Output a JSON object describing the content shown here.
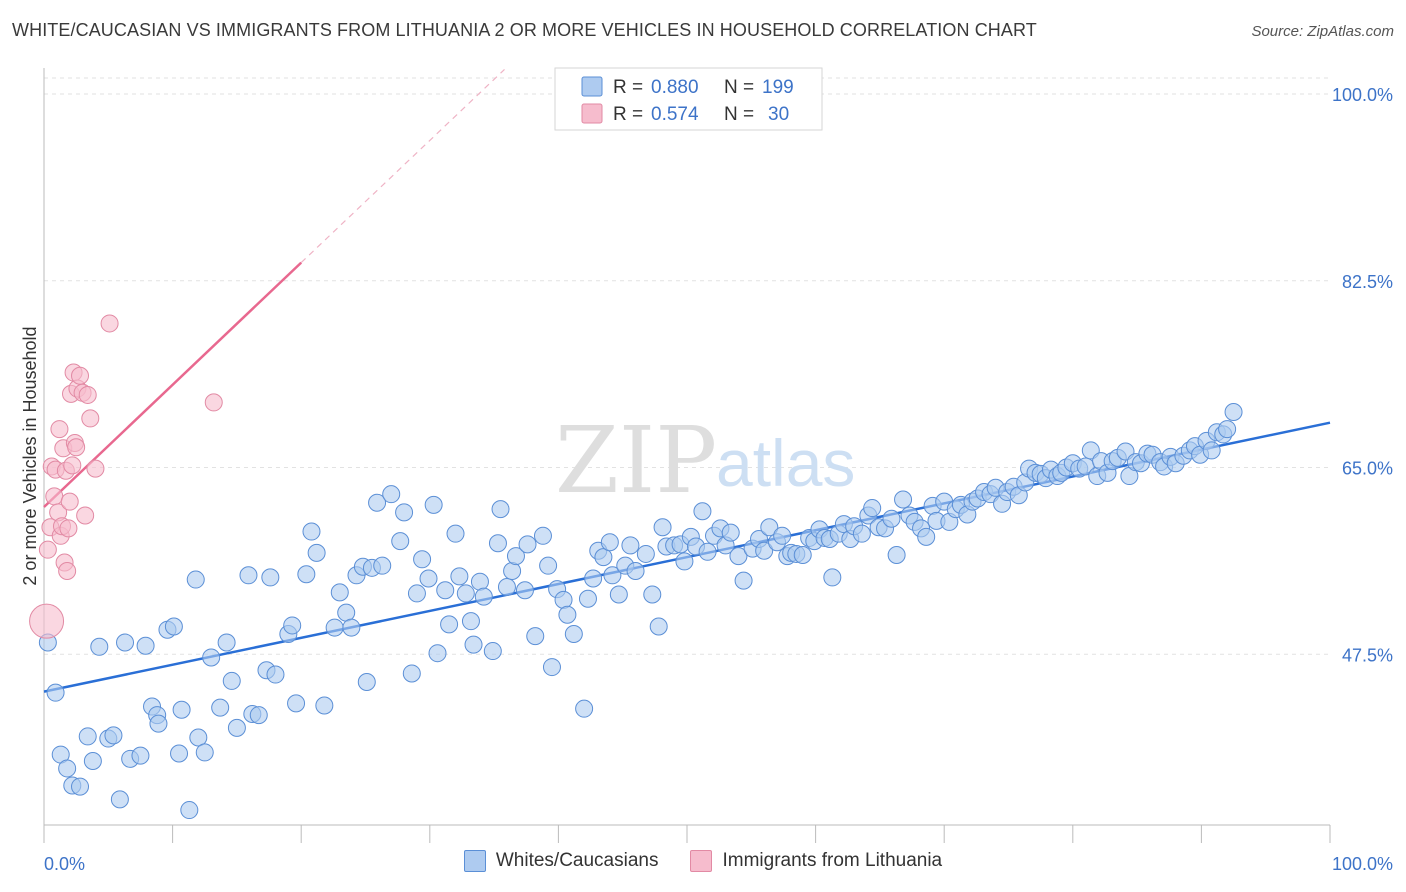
{
  "title": "WHITE/CAUCASIAN VS IMMIGRANTS FROM LITHUANIA 2 OR MORE VEHICLES IN HOUSEHOLD CORRELATION CHART",
  "source": "Source: ZipAtlas.com",
  "watermark": {
    "zip": "ZIP",
    "atlas": "atlas"
  },
  "colors": {
    "blue_fill": "#aecbf0",
    "blue_stroke": "#5b8fd6",
    "blue_line": "#2a6fd6",
    "pink_fill": "#f6bccd",
    "pink_stroke": "#e28aa4",
    "pink_line": "#e8688f",
    "axis_label": "#3d73c8"
  },
  "legend_box": {
    "rows": [
      {
        "r_label": "R =",
        "r_value": "0.880",
        "n_label": "N =",
        "n_value": "199"
      },
      {
        "r_label": "R =",
        "r_value": "0.574",
        "n_label": "N =",
        "n_value": "30"
      }
    ]
  },
  "bottom_legend": [
    "Whites/Caucasians",
    "Immigrants from Lithuania"
  ],
  "chart_data": {
    "type": "scatter",
    "title": "WHITE/CAUCASIAN VS IMMIGRANTS FROM LITHUANIA 2 OR MORE VEHICLES IN HOUSEHOLD CORRELATION CHART",
    "xlabel": "",
    "ylabel": "2 or more Vehicles in Household",
    "xlim": [
      0,
      100
    ],
    "ylim": [
      31.5,
      101.5
    ],
    "x_tick_labels": [
      "0.0%",
      "100.0%"
    ],
    "y_tick_values": [
      47.5,
      65.0,
      82.5,
      100.0
    ],
    "y_tick_labels": [
      "47.5%",
      "65.0%",
      "82.5%",
      "100.0%"
    ],
    "grid": true,
    "legend_position": "top-center",
    "series": [
      {
        "name": "Whites/Caucasians",
        "R": 0.88,
        "N": 199,
        "trend": {
          "x": [
            0,
            100
          ],
          "y": [
            44.0,
            69.2
          ]
        },
        "points": [
          [
            0.3,
            48.6
          ],
          [
            0.9,
            43.9
          ],
          [
            1.3,
            38.1
          ],
          [
            1.8,
            36.8
          ],
          [
            2.2,
            35.2
          ],
          [
            2.8,
            35.1
          ],
          [
            3.4,
            39.8
          ],
          [
            3.8,
            37.5
          ],
          [
            4.3,
            48.2
          ],
          [
            5.0,
            39.6
          ],
          [
            5.4,
            39.9
          ],
          [
            5.9,
            33.9
          ],
          [
            6.3,
            48.6
          ],
          [
            6.7,
            37.7
          ],
          [
            7.5,
            38.0
          ],
          [
            7.9,
            48.3
          ],
          [
            8.4,
            42.6
          ],
          [
            8.8,
            41.8
          ],
          [
            8.9,
            41.0
          ],
          [
            9.6,
            49.8
          ],
          [
            10.1,
            50.1
          ],
          [
            10.5,
            38.2
          ],
          [
            10.7,
            42.3
          ],
          [
            11.3,
            32.9
          ],
          [
            11.8,
            54.5
          ],
          [
            12.0,
            39.7
          ],
          [
            12.5,
            38.3
          ],
          [
            13.0,
            47.2
          ],
          [
            13.7,
            42.5
          ],
          [
            14.2,
            48.6
          ],
          [
            14.6,
            45.0
          ],
          [
            15.0,
            40.6
          ],
          [
            15.9,
            54.9
          ],
          [
            16.2,
            41.9
          ],
          [
            16.7,
            41.8
          ],
          [
            17.3,
            46.0
          ],
          [
            18.0,
            45.6
          ],
          [
            17.6,
            54.7
          ],
          [
            19.0,
            49.4
          ],
          [
            19.3,
            50.2
          ],
          [
            19.6,
            42.9
          ],
          [
            20.4,
            55.0
          ],
          [
            20.8,
            59.0
          ],
          [
            21.2,
            57.0
          ],
          [
            21.8,
            42.7
          ],
          [
            22.6,
            50.0
          ],
          [
            23.0,
            53.3
          ],
          [
            23.5,
            51.4
          ],
          [
            23.9,
            50.0
          ],
          [
            24.3,
            54.9
          ],
          [
            24.8,
            55.7
          ],
          [
            25.1,
            44.9
          ],
          [
            25.5,
            55.6
          ],
          [
            25.9,
            61.7
          ],
          [
            26.3,
            55.8
          ],
          [
            27.0,
            62.5
          ],
          [
            27.7,
            58.1
          ],
          [
            28.0,
            60.8
          ],
          [
            28.6,
            45.7
          ],
          [
            29.0,
            53.2
          ],
          [
            29.4,
            56.4
          ],
          [
            29.9,
            54.6
          ],
          [
            30.3,
            61.5
          ],
          [
            30.6,
            47.6
          ],
          [
            31.2,
            53.5
          ],
          [
            31.5,
            50.3
          ],
          [
            32.0,
            58.8
          ],
          [
            32.3,
            54.8
          ],
          [
            32.8,
            53.2
          ],
          [
            33.2,
            50.6
          ],
          [
            33.4,
            48.4
          ],
          [
            33.9,
            54.3
          ],
          [
            34.2,
            52.9
          ],
          [
            34.9,
            47.8
          ],
          [
            35.3,
            57.9
          ],
          [
            35.5,
            61.1
          ],
          [
            36.0,
            53.8
          ],
          [
            36.4,
            55.3
          ],
          [
            36.7,
            56.7
          ],
          [
            37.4,
            53.5
          ],
          [
            37.6,
            57.8
          ],
          [
            38.2,
            49.2
          ],
          [
            38.8,
            58.6
          ],
          [
            39.2,
            55.8
          ],
          [
            39.5,
            46.3
          ],
          [
            39.9,
            53.6
          ],
          [
            40.4,
            52.6
          ],
          [
            40.7,
            51.2
          ],
          [
            41.2,
            49.4
          ],
          [
            42.0,
            42.4
          ],
          [
            42.3,
            52.7
          ],
          [
            42.7,
            54.6
          ],
          [
            43.1,
            57.2
          ],
          [
            43.5,
            56.6
          ],
          [
            44.0,
            58.0
          ],
          [
            44.2,
            54.9
          ],
          [
            44.7,
            53.1
          ],
          [
            45.2,
            55.8
          ],
          [
            45.6,
            57.7
          ],
          [
            46.0,
            55.3
          ],
          [
            46.8,
            56.9
          ],
          [
            47.3,
            53.1
          ],
          [
            47.8,
            50.1
          ],
          [
            48.1,
            59.4
          ],
          [
            48.4,
            57.6
          ],
          [
            49.0,
            57.7
          ],
          [
            49.5,
            57.8
          ],
          [
            49.8,
            56.2
          ],
          [
            50.3,
            58.5
          ],
          [
            50.7,
            57.6
          ],
          [
            51.2,
            60.9
          ],
          [
            51.6,
            57.1
          ],
          [
            52.1,
            58.6
          ],
          [
            52.6,
            59.3
          ],
          [
            53.0,
            57.7
          ],
          [
            53.4,
            58.9
          ],
          [
            54.0,
            56.7
          ],
          [
            54.4,
            54.4
          ],
          [
            55.1,
            57.4
          ],
          [
            55.6,
            58.3
          ],
          [
            56.0,
            57.2
          ],
          [
            56.4,
            59.4
          ],
          [
            57.0,
            58.0
          ],
          [
            57.4,
            58.6
          ],
          [
            57.8,
            56.7
          ],
          [
            58.1,
            57.0
          ],
          [
            58.5,
            56.9
          ],
          [
            59.0,
            56.8
          ],
          [
            59.5,
            58.4
          ],
          [
            59.9,
            58.1
          ],
          [
            60.3,
            59.2
          ],
          [
            60.7,
            58.4
          ],
          [
            61.1,
            58.3
          ],
          [
            61.3,
            54.7
          ],
          [
            61.8,
            58.8
          ],
          [
            62.2,
            59.7
          ],
          [
            62.7,
            58.3
          ],
          [
            63.0,
            59.5
          ],
          [
            63.6,
            58.8
          ],
          [
            64.1,
            60.5
          ],
          [
            64.4,
            61.2
          ],
          [
            64.9,
            59.4
          ],
          [
            65.4,
            59.3
          ],
          [
            65.9,
            60.2
          ],
          [
            66.3,
            56.8
          ],
          [
            66.8,
            62.0
          ],
          [
            67.3,
            60.5
          ],
          [
            67.7,
            59.9
          ],
          [
            68.2,
            59.3
          ],
          [
            68.6,
            58.5
          ],
          [
            69.1,
            61.4
          ],
          [
            69.4,
            60.0
          ],
          [
            70.0,
            61.8
          ],
          [
            70.4,
            59.9
          ],
          [
            70.9,
            61.1
          ],
          [
            71.3,
            61.5
          ],
          [
            71.8,
            60.6
          ],
          [
            72.2,
            61.8
          ],
          [
            72.6,
            62.1
          ],
          [
            73.1,
            62.7
          ],
          [
            73.6,
            62.5
          ],
          [
            74.0,
            63.1
          ],
          [
            74.5,
            61.6
          ],
          [
            74.9,
            62.7
          ],
          [
            75.4,
            63.2
          ],
          [
            75.8,
            62.4
          ],
          [
            76.3,
            63.6
          ],
          [
            76.6,
            64.9
          ],
          [
            77.1,
            64.5
          ],
          [
            77.5,
            64.4
          ],
          [
            77.9,
            64.0
          ],
          [
            78.3,
            64.8
          ],
          [
            78.8,
            64.2
          ],
          [
            79.1,
            64.5
          ],
          [
            79.5,
            65.0
          ],
          [
            80.0,
            65.4
          ],
          [
            80.5,
            64.9
          ],
          [
            81.0,
            65.1
          ],
          [
            81.4,
            66.6
          ],
          [
            81.9,
            64.2
          ],
          [
            82.2,
            65.6
          ],
          [
            82.7,
            64.5
          ],
          [
            83.1,
            65.6
          ],
          [
            83.5,
            65.9
          ],
          [
            84.1,
            66.5
          ],
          [
            84.4,
            64.2
          ],
          [
            84.9,
            65.5
          ],
          [
            85.3,
            65.4
          ],
          [
            85.8,
            66.3
          ],
          [
            86.2,
            66.2
          ],
          [
            86.8,
            65.5
          ],
          [
            87.1,
            65.1
          ],
          [
            87.6,
            66.0
          ],
          [
            88.0,
            65.4
          ],
          [
            88.6,
            66.1
          ],
          [
            89.1,
            66.6
          ],
          [
            89.5,
            67.0
          ],
          [
            89.9,
            66.2
          ],
          [
            90.4,
            67.5
          ],
          [
            90.8,
            66.6
          ],
          [
            91.2,
            68.3
          ],
          [
            91.7,
            68.1
          ],
          [
            92.0,
            68.6
          ],
          [
            92.5,
            70.2
          ]
        ]
      },
      {
        "name": "Immigrants from Lithuania",
        "R": 0.574,
        "N": 30,
        "trend": {
          "x": [
            0,
            20
          ],
          "y": [
            61.3,
            84.2
          ]
        },
        "points": [
          [
            0.2,
            50.6
          ],
          [
            0.3,
            57.3
          ],
          [
            0.5,
            59.4
          ],
          [
            0.6,
            65.1
          ],
          [
            0.8,
            62.3
          ],
          [
            0.9,
            64.8
          ],
          [
            1.1,
            60.8
          ],
          [
            1.2,
            68.6
          ],
          [
            1.3,
            58.6
          ],
          [
            1.4,
            59.5
          ],
          [
            1.5,
            66.8
          ],
          [
            1.6,
            56.1
          ],
          [
            1.7,
            64.7
          ],
          [
            1.8,
            55.3
          ],
          [
            1.9,
            59.3
          ],
          [
            2.0,
            61.8
          ],
          [
            2.1,
            71.9
          ],
          [
            2.2,
            65.2
          ],
          [
            2.3,
            73.9
          ],
          [
            2.4,
            67.3
          ],
          [
            2.5,
            66.9
          ],
          [
            2.6,
            72.4
          ],
          [
            2.8,
            73.6
          ],
          [
            3.0,
            72.0
          ],
          [
            3.2,
            60.5
          ],
          [
            3.4,
            71.8
          ],
          [
            3.6,
            69.6
          ],
          [
            4.0,
            64.9
          ],
          [
            5.1,
            78.5
          ],
          [
            13.2,
            71.1
          ]
        ]
      }
    ]
  }
}
